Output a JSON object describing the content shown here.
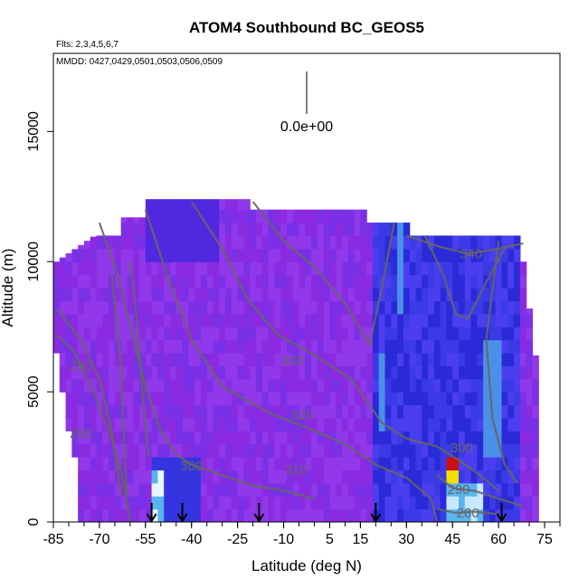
{
  "chart_data": {
    "type": "heatmap",
    "title": "ATOM4 Southbound BC_GEOS5",
    "flights_note": "Flts: 2,3,4,5,6,7",
    "dates_note": "MMDD: 0427,0429,0501,0503,0506,0509",
    "xlabel": "Latitude (deg N)",
    "ylabel": "Altitude (m)",
    "xlim": [
      -85,
      80
    ],
    "ylim": [
      0,
      18000
    ],
    "x_ticks": [
      -85,
      -70,
      -55,
      -40,
      -25,
      -10,
      5,
      15,
      30,
      45,
      60,
      75
    ],
    "y_ticks": [
      0,
      5000,
      10000,
      15000
    ],
    "scale_label": "0.0e+00",
    "contour_labels": [
      {
        "text": "340",
        "x": 51,
        "y": 10300
      },
      {
        "text": "330",
        "x": -7,
        "y": 6200
      },
      {
        "text": "320",
        "x": -4,
        "y": 4100
      },
      {
        "text": "310",
        "x": -6,
        "y": 2000
      },
      {
        "text": "300",
        "x": -40,
        "y": 2150
      },
      {
        "text": "300",
        "x": 48,
        "y": 2850
      },
      {
        "text": "290",
        "x": -76,
        "y": 6000
      },
      {
        "text": "280",
        "x": -76,
        "y": 3400
      },
      {
        "text": "290",
        "x": 47,
        "y": 1250
      },
      {
        "text": "280",
        "x": 50,
        "y": 350
      }
    ],
    "flight_markers_lat": [
      -53,
      -43,
      -18,
      20,
      61
    ],
    "grid": false,
    "colors": {
      "background": "#8a2be2",
      "mid": "#3535e0",
      "high": "#5ab4f0",
      "peak_red": "#cc1010",
      "peak_yellow": "#f0e000",
      "contour": "#666666"
    }
  }
}
